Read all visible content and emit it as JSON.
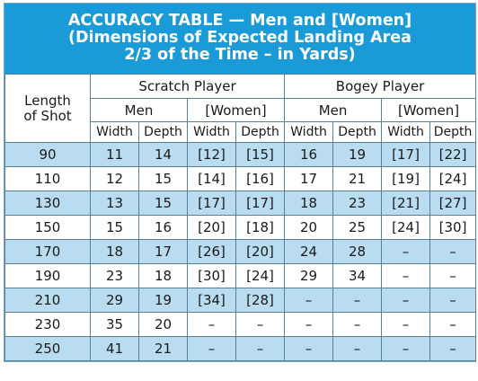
{
  "title": {
    "line1": "ACCURACY TABLE — Men and [Women]",
    "line2": "(Dimensions of Expected Landing Area",
    "line3": "2/3 of the Time – in Yards)"
  },
  "headers": {
    "length_line1": "Length",
    "length_line2": "of Shot",
    "scratch": "Scratch Player",
    "bogey": "Bogey Player",
    "men": "Men",
    "women": "[Women]",
    "width": "Width",
    "depth": "Depth"
  },
  "rows": [
    [
      "90",
      "11",
      "14",
      "[12]",
      "[15]",
      "16",
      "19",
      "[17]",
      "[22]"
    ],
    [
      "110",
      "12",
      "15",
      "[14]",
      "[16]",
      "17",
      "21",
      "[19]",
      "[24]"
    ],
    [
      "130",
      "13",
      "15",
      "[17]",
      "[17]",
      "18",
      "23",
      "[21]",
      "[27]"
    ],
    [
      "150",
      "15",
      "16",
      "[20]",
      "[18]",
      "20",
      "25",
      "[24]",
      "[30]"
    ],
    [
      "170",
      "18",
      "17",
      "[26]",
      "[20]",
      "24",
      "28",
      "–",
      "–"
    ],
    [
      "190",
      "23",
      "18",
      "[30]",
      "[24]",
      "29",
      "34",
      "–",
      "–"
    ],
    [
      "210",
      "29",
      "19",
      "[34]",
      "[28]",
      "–",
      "–",
      "–",
      "–"
    ],
    [
      "230",
      "35",
      "20",
      "–",
      "–",
      "–",
      "–",
      "–",
      "–"
    ],
    [
      "250",
      "41",
      "21",
      "–",
      "–",
      "–",
      "–",
      "–",
      "–"
    ]
  ],
  "colors": {
    "title_bg": "#1a9bd8",
    "stripe": "#b9dcf0",
    "border": "#5b7f98"
  }
}
